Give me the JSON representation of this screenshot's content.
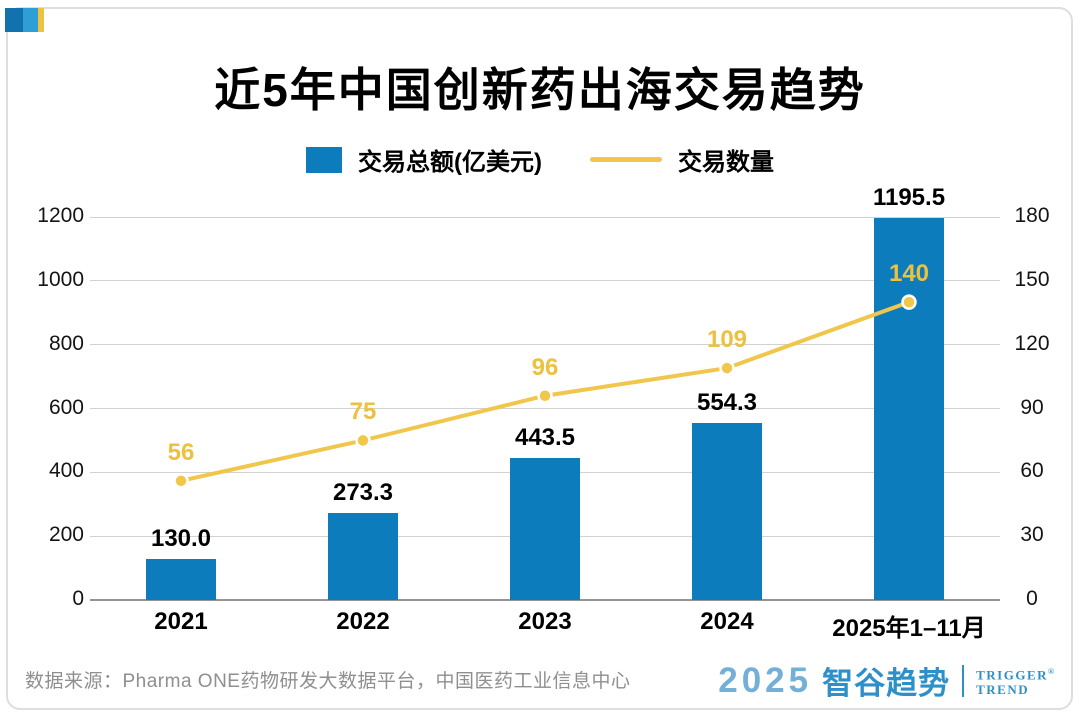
{
  "header": {
    "title": "近5年中国创新药出海交易趋势"
  },
  "legend": {
    "bar_label": "交易总额(亿美元)",
    "line_label": "交易数量"
  },
  "chart_data": {
    "type": "bar+line combo",
    "categories": [
      "2021",
      "2022",
      "2023",
      "2024",
      "2025年1–11月"
    ],
    "series": [
      {
        "name": "交易总额(亿美元)",
        "type": "bar",
        "axis": "left",
        "values": [
          130.0,
          273.3,
          443.5,
          554.3,
          1195.5
        ],
        "labels": [
          "130.0",
          "273.3",
          "443.5",
          "554.3",
          "1195.5"
        ],
        "color": "#0c7cbd"
      },
      {
        "name": "交易数量",
        "type": "line",
        "axis": "right",
        "values": [
          56,
          75,
          96,
          109,
          140
        ],
        "labels": [
          "56",
          "75",
          "96",
          "109",
          "140"
        ],
        "color": "#f0c64b"
      }
    ],
    "left_axis": {
      "min": 0,
      "max": 1200,
      "step": 200,
      "ticks": [
        "0",
        "200",
        "400",
        "600",
        "800",
        "1000",
        "1200"
      ]
    },
    "right_axis": {
      "min": 0,
      "max": 180,
      "step": 30,
      "ticks": [
        "0",
        "30",
        "60",
        "90",
        "120",
        "150",
        "180"
      ]
    },
    "grid": true,
    "legend_position": "top-center"
  },
  "footer": {
    "source": "数据来源：Pharma ONE药物研发大数据平台，中国医药工业信息中心",
    "brand": {
      "year": "2025",
      "name": "智谷趋势",
      "tagline_line1": "TRIGGER",
      "tagline_line2": "TREND",
      "reg_mark": "®"
    }
  },
  "colors": {
    "bar_blue": "#0c7cbd",
    "line_yellow": "#f0c64b",
    "label_yellow": "#edc140",
    "grid": "#d2d2d2",
    "axis_baseline": "#959595",
    "source_gray": "#8f8f8f",
    "brand_blue": "#2e90c9",
    "brand_light_blue": "#74afd8",
    "logo_dark_blue": "#1272ae",
    "logo_light_blue": "#2d9fd6",
    "logo_yellow": "#eec23d"
  }
}
